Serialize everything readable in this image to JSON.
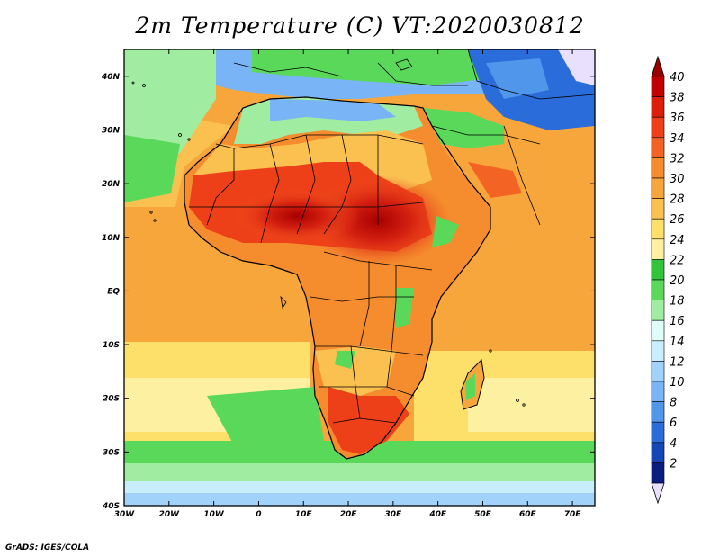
{
  "title": "2m Temperature (C) VT:2020030812",
  "credit": "GrADS: IGES/COLA",
  "map": {
    "lon_range": [
      -30,
      75
    ],
    "lat_range": [
      -40,
      45
    ],
    "lon_ticks": [
      -30,
      -20,
      -10,
      0,
      10,
      20,
      30,
      40,
      50,
      60,
      70
    ],
    "lon_tick_labels": [
      "30W",
      "20W",
      "10W",
      "0",
      "10E",
      "20E",
      "30E",
      "40E",
      "50E",
      "60E",
      "70E"
    ],
    "lat_ticks": [
      40,
      30,
      20,
      10,
      0,
      -10,
      -20,
      -30,
      -40
    ],
    "lat_tick_labels": [
      "40N",
      "30N",
      "20N",
      "10N",
      "EQ",
      "10S",
      "20S",
      "30S",
      "40S"
    ]
  },
  "colorbar": {
    "labels": [
      "40",
      "38",
      "36",
      "34",
      "32",
      "30",
      "28",
      "26",
      "24",
      "22",
      "20",
      "18",
      "16",
      "14",
      "12",
      "10",
      "8",
      "6",
      "4",
      "2"
    ],
    "colors": [
      "#c00000",
      "#dc1e0a",
      "#ee4018",
      "#f36424",
      "#f58c2e",
      "#f7a63c",
      "#fac050",
      "#fde06a",
      "#fdf0a0",
      "#32c43a",
      "#5ad85a",
      "#a0eca0",
      "#e0fcf8",
      "#c8eefe",
      "#a0d2fa",
      "#78b4f6",
      "#5096ea",
      "#2a6cda",
      "#1446b6",
      "#0a1e82"
    ],
    "top_color": "#9a0000",
    "bottom_color": "#e8e0fc"
  }
}
